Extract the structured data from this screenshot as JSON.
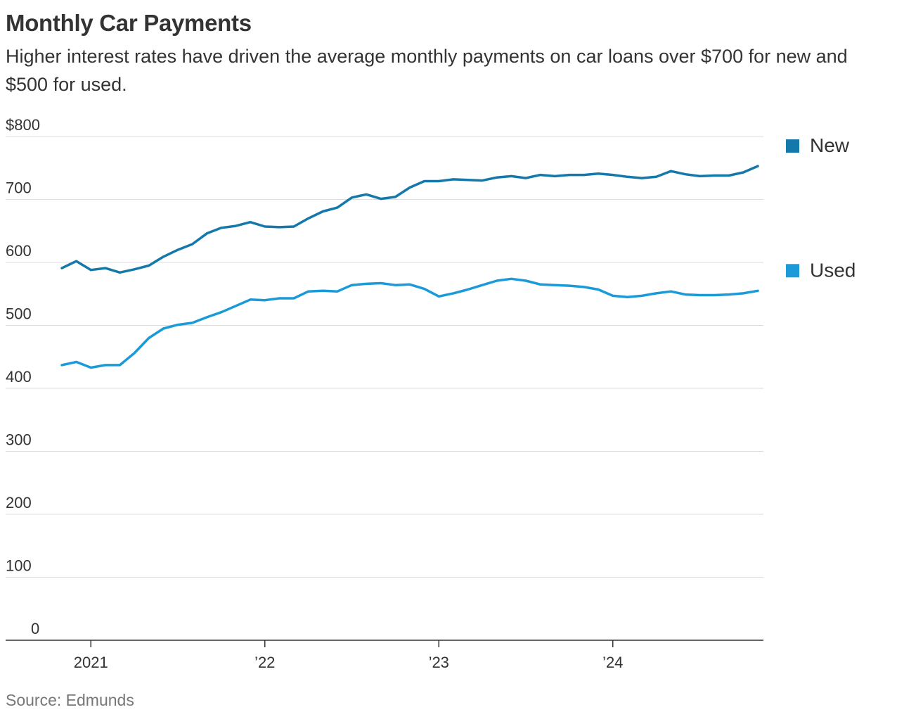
{
  "chart_data": {
    "type": "line",
    "title": "Monthly Car Payments",
    "subtitle": "Higher interest rates have driven the average monthly payments on car loans over $700 for new and $500 for used.",
    "source": "Source: Edmunds",
    "ylim": [
      0,
      800
    ],
    "yticks": [
      0,
      100,
      200,
      300,
      400,
      500,
      600,
      700,
      800
    ],
    "ytick_labels": [
      "0",
      "100",
      "200",
      "300",
      "400",
      "500",
      "600",
      "700",
      "$800"
    ],
    "xlim": [
      "2020-11",
      "2024-11"
    ],
    "xticks": [
      "2021-01",
      "2022-01",
      "2023-01",
      "2024-01"
    ],
    "xtick_labels": [
      "2021",
      "’22",
      "’23",
      "’24"
    ],
    "grid": true,
    "legend_position": "right",
    "x": [
      "2020-11",
      "2020-12",
      "2021-01",
      "2021-02",
      "2021-03",
      "2021-04",
      "2021-05",
      "2021-06",
      "2021-07",
      "2021-08",
      "2021-09",
      "2021-10",
      "2021-11",
      "2021-12",
      "2022-01",
      "2022-02",
      "2022-03",
      "2022-04",
      "2022-05",
      "2022-06",
      "2022-07",
      "2022-08",
      "2022-09",
      "2022-10",
      "2022-11",
      "2022-12",
      "2023-01",
      "2023-02",
      "2023-03",
      "2023-04",
      "2023-05",
      "2023-06",
      "2023-07",
      "2023-08",
      "2023-09",
      "2023-10",
      "2023-11",
      "2023-12",
      "2024-01",
      "2024-02",
      "2024-03",
      "2024-04",
      "2024-05",
      "2024-06",
      "2024-07",
      "2024-08",
      "2024-09",
      "2024-10",
      "2024-11"
    ],
    "series": [
      {
        "name": "New",
        "color": "#1479aa",
        "values": [
          591,
          602,
          588,
          591,
          584,
          589,
          595,
          609,
          620,
          629,
          646,
          655,
          658,
          664,
          657,
          656,
          657,
          670,
          681,
          687,
          703,
          708,
          701,
          704,
          719,
          729,
          729,
          732,
          731,
          730,
          735,
          737,
          734,
          739,
          737,
          739,
          739,
          741,
          739,
          736,
          734,
          736,
          745,
          740,
          737,
          738,
          738,
          743,
          753
        ]
      },
      {
        "name": "Used",
        "color": "#1b9ad9",
        "values": [
          437,
          442,
          433,
          437,
          437,
          456,
          480,
          495,
          501,
          504,
          513,
          521,
          531,
          541,
          540,
          543,
          543,
          554,
          555,
          554,
          564,
          566,
          567,
          564,
          565,
          558,
          546,
          551,
          557,
          564,
          571,
          574,
          571,
          565,
          564,
          563,
          561,
          557,
          547,
          545,
          547,
          551,
          554,
          549,
          548,
          548,
          549,
          551,
          555
        ]
      }
    ]
  }
}
